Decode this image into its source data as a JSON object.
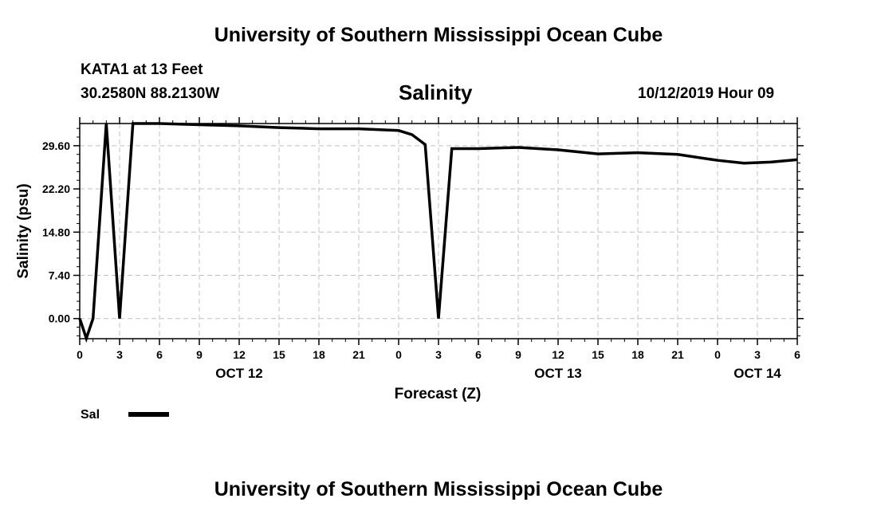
{
  "header": {
    "title": "University of Southern Mississippi Ocean Cube",
    "station": "KATA1 at 13 Feet",
    "coordinates": "30.2580N 88.2130W",
    "datetime": "10/12/2019 Hour 09"
  },
  "footer": {
    "title": "University of Southern Mississippi Ocean Cube"
  },
  "colors": {
    "line": "#000000",
    "grid": "#c0c0c0"
  },
  "chart_data": {
    "type": "line",
    "title": "Salinity",
    "xlabel": "Forecast (Z)",
    "ylabel": "Salinity (psu)",
    "xlim": [
      0,
      54
    ],
    "ylim": [
      -3.45,
      33.4
    ],
    "yticks": [
      0.0,
      7.4,
      14.8,
      22.2,
      29.6
    ],
    "ytick_labels": [
      "0.00",
      "7.40",
      "14.80",
      "22.20",
      "29.60"
    ],
    "xticks": [
      0,
      3,
      6,
      9,
      12,
      15,
      18,
      21,
      24,
      27,
      30,
      33,
      36,
      39,
      42,
      45,
      48,
      51,
      54
    ],
    "xtick_labels": [
      "0",
      "3",
      "6",
      "9",
      "12",
      "15",
      "18",
      "21",
      "0",
      "3",
      "6",
      "9",
      "12",
      "15",
      "18",
      "21",
      "0",
      "3",
      "6"
    ],
    "date_labels": [
      {
        "x": 12,
        "label": "OCT 12"
      },
      {
        "x": 36,
        "label": "OCT 13"
      },
      {
        "x": 51,
        "label": "OCT 14"
      }
    ],
    "grid": true,
    "legend_position": "bottom-left",
    "series": [
      {
        "name": "Sal",
        "x": [
          0,
          0.5,
          1,
          2,
          3,
          4,
          6,
          9,
          12,
          15,
          18,
          21,
          24,
          25,
          26,
          27,
          28,
          30,
          33,
          36,
          39,
          42,
          45,
          48,
          50,
          52,
          54
        ],
        "y": [
          0.0,
          -3.4,
          0.0,
          33.4,
          0.0,
          33.4,
          33.4,
          33.2,
          33.0,
          32.7,
          32.5,
          32.5,
          32.2,
          31.5,
          29.8,
          0.0,
          29.1,
          29.1,
          29.3,
          28.9,
          28.2,
          28.4,
          28.1,
          27.1,
          26.6,
          26.8,
          27.2
        ]
      }
    ]
  }
}
